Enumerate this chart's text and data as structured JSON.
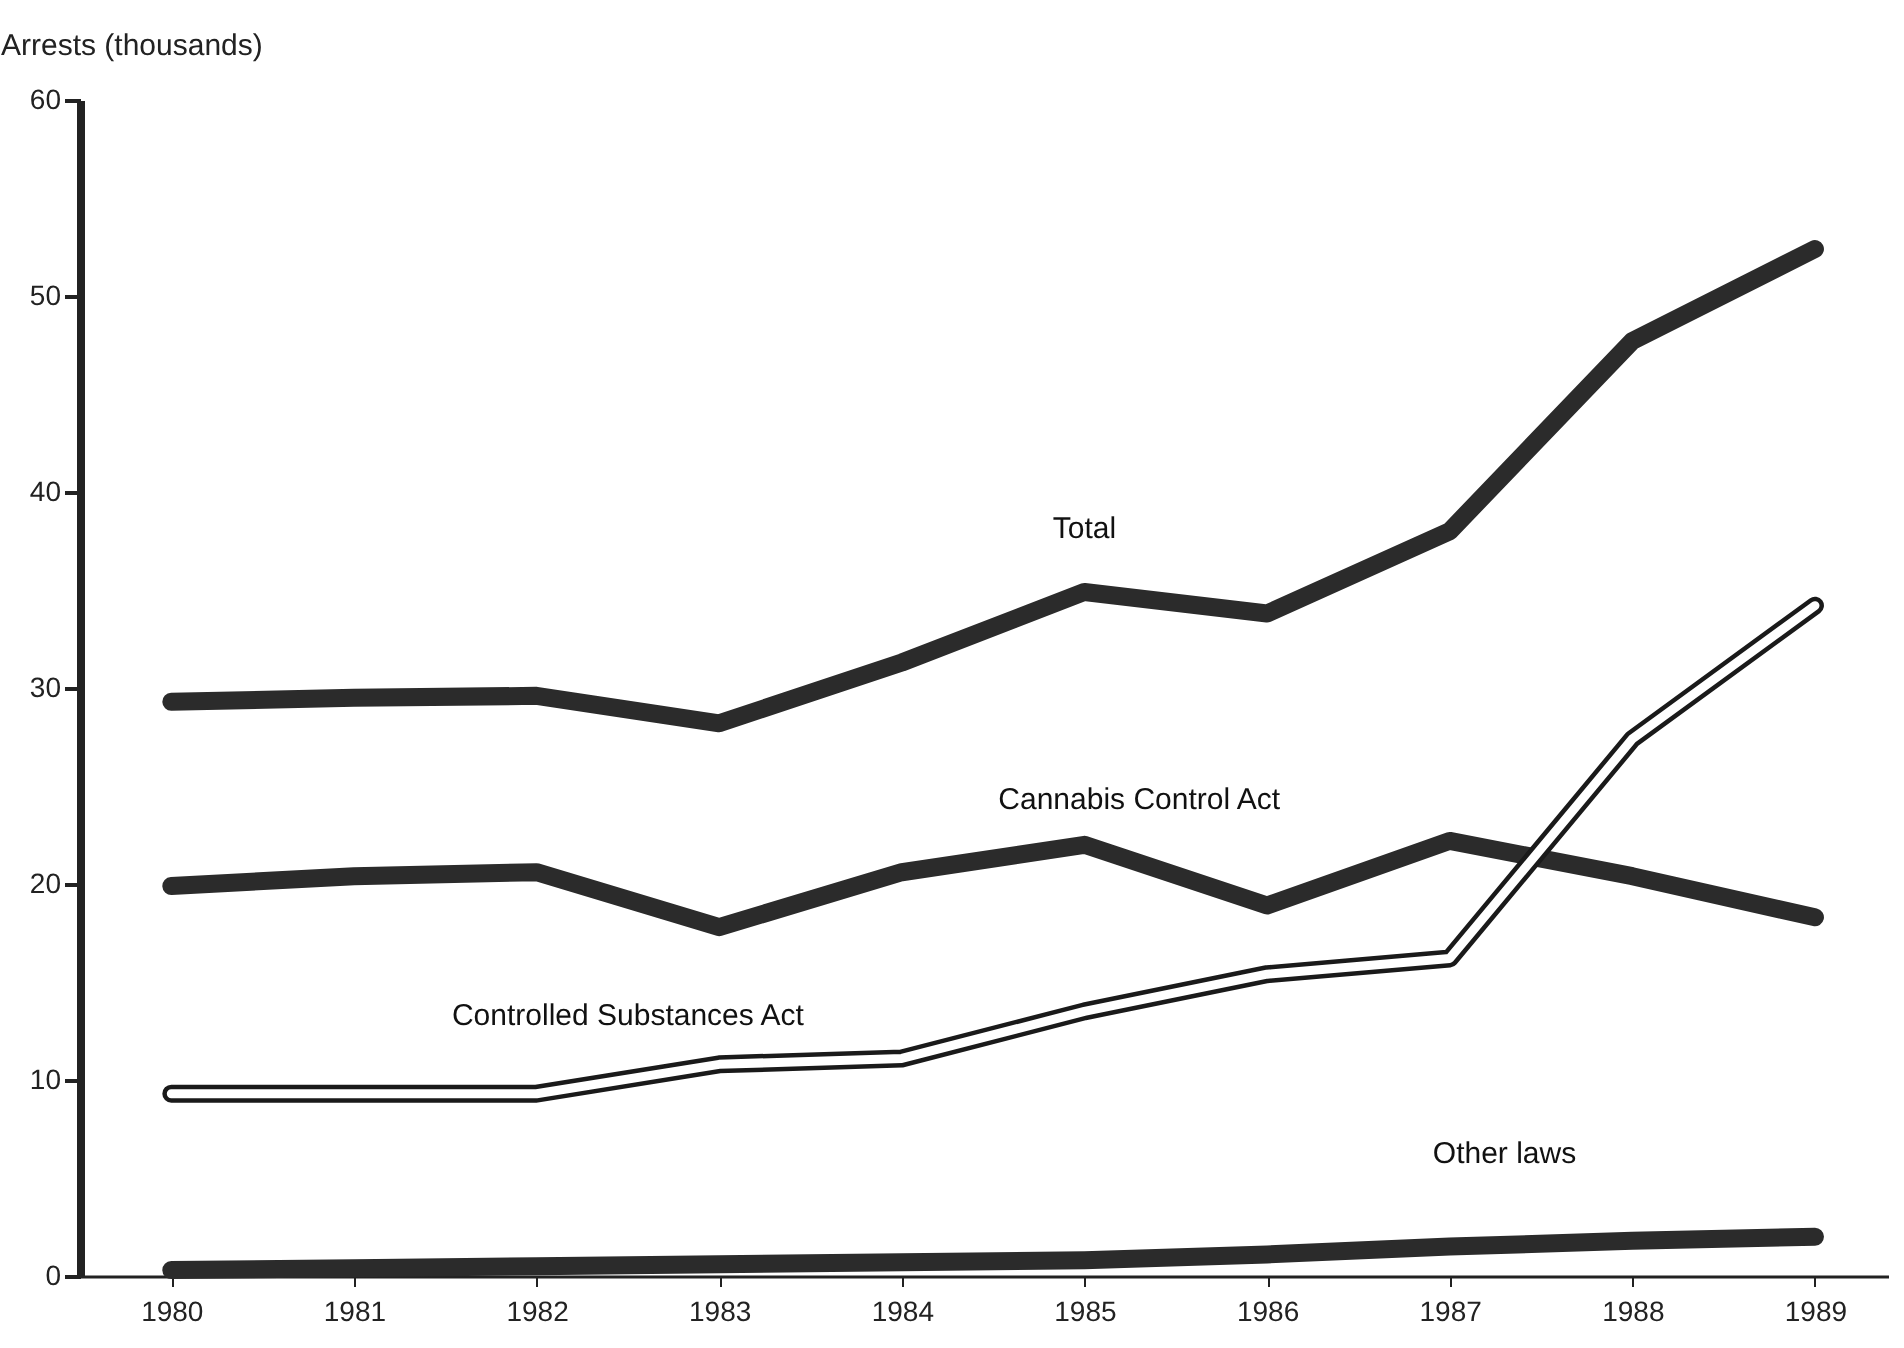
{
  "chart_data": {
    "type": "line",
    "ylabel": "Arrests (thousands)",
    "x": [
      1980,
      1981,
      1982,
      1983,
      1984,
      1985,
      1986,
      1987,
      1988,
      1989
    ],
    "series": [
      {
        "name": "Total",
        "color": "#2b2b2b",
        "values": [
          29.3,
          29.5,
          29.6,
          28.2,
          31.3,
          34.9,
          33.8,
          38.0,
          47.7,
          52.4
        ]
      },
      {
        "name": "Cannabis Control Act",
        "color": "#2b2b2b",
        "values": [
          19.9,
          20.4,
          20.6,
          17.8,
          20.6,
          22.0,
          18.9,
          22.2,
          20.4,
          18.3
        ]
      },
      {
        "name": "Controlled Substances Act",
        "color": "#ffffff",
        "values": [
          9.3,
          9.3,
          9.3,
          10.8,
          11.1,
          13.5,
          15.4,
          16.2,
          27.4,
          34.2
        ]
      },
      {
        "name": "Other laws",
        "color": "#2b2b2b",
        "values": [
          0.3,
          0.4,
          0.5,
          0.6,
          0.7,
          0.8,
          1.1,
          1.5,
          1.8,
          2.0
        ]
      }
    ],
    "legend": false,
    "xlim": [
      1979.5,
      1989.4
    ],
    "xticks": [
      1980,
      1981,
      1982,
      1983,
      1984,
      1985,
      1986,
      1987,
      1988,
      1989
    ],
    "ylim": [
      0,
      60
    ],
    "yticks": [
      0,
      10,
      20,
      30,
      40,
      50,
      60
    ],
    "grid": false,
    "marker": "none",
    "line_style": "solid"
  }
}
